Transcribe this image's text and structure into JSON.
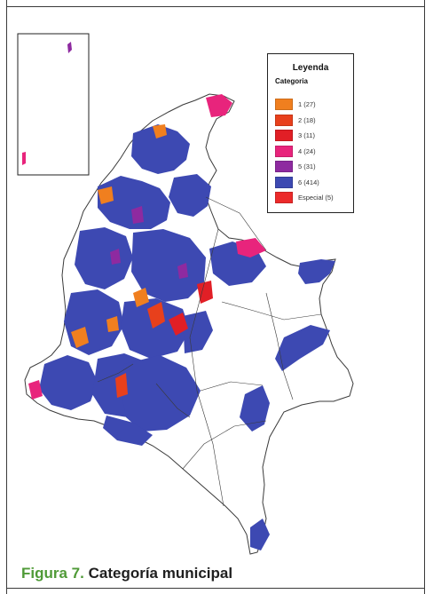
{
  "legend": {
    "title": "Leyenda",
    "subtitle": "Categoria",
    "items": [
      {
        "label": "1 (27)",
        "color": "#f07f1f"
      },
      {
        "label": "2 (18)",
        "color": "#e8401c"
      },
      {
        "label": "3 (11)",
        "color": "#e11f26"
      },
      {
        "label": "4 (24)",
        "color": "#e8247c"
      },
      {
        "label": "5 (31)",
        "color": "#8e2aa0"
      },
      {
        "label": "6 (414)",
        "color": "#3d49b2"
      },
      {
        "label": "Especial (5)",
        "color": "#ec2a2a"
      }
    ]
  },
  "caption": {
    "figure": "Figura 7.",
    "title": "Categoría municipal"
  },
  "colors": {
    "unclassified": "#ffffff",
    "boundary": "#3a3a3a",
    "caption_accent": "#4f9a37"
  }
}
